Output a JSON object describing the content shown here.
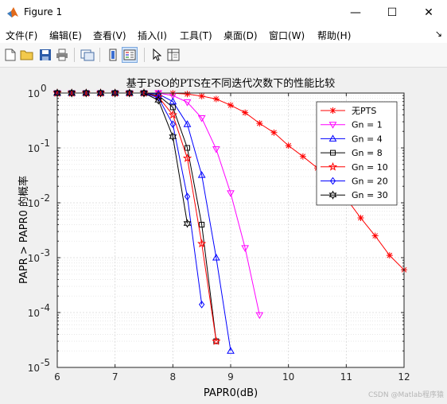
{
  "window": {
    "title": "Figure 1",
    "buttons": {
      "minimize": "—",
      "maximize": "☐",
      "close": "✕"
    }
  },
  "menubar": {
    "items": [
      {
        "name": "menu-file",
        "label": "文件(F)"
      },
      {
        "name": "menu-edit",
        "label": "编辑(E)"
      },
      {
        "name": "menu-view",
        "label": "查看(V)"
      },
      {
        "name": "menu-insert",
        "label": "插入(I)"
      },
      {
        "name": "menu-tools",
        "label": "工具(T)"
      },
      {
        "name": "menu-desktop",
        "label": "桌面(D)"
      },
      {
        "name": "menu-window",
        "label": "窗口(W)"
      },
      {
        "name": "menu-help",
        "label": "帮助(H)"
      }
    ],
    "dock_glyph": "↘"
  },
  "toolbar": {
    "icons": [
      "new-figure-icon",
      "open-file-icon",
      "save-icon",
      "print-icon",
      "link-plot-icon",
      "colorbar-icon",
      "legend-icon",
      "pointer-icon",
      "property-inspector-icon"
    ]
  },
  "watermark": "CSDN @Matlab程序猿",
  "chart_data": {
    "type": "line",
    "title": "基于PSO的PTS在不同迭代次数下的性能比较",
    "xlabel": "PAPR0(dB)",
    "ylabel": "PAPR > PAPR0 的概率",
    "xlim": [
      6,
      12
    ],
    "ylim": [
      1e-05,
      1
    ],
    "yscale": "log",
    "xticks": [
      "6",
      "7",
      "8",
      "9",
      "10",
      "11",
      "12"
    ],
    "yticks": [
      {
        "base": "10",
        "exp": "0"
      },
      {
        "base": "10",
        "exp": "-1"
      },
      {
        "base": "10",
        "exp": "-2"
      },
      {
        "base": "10",
        "exp": "-3"
      },
      {
        "base": "10",
        "exp": "-4"
      },
      {
        "base": "10",
        "exp": "-5"
      }
    ],
    "grid": true,
    "minor_grid": true,
    "legend_position": "top-right",
    "series": [
      {
        "name": "无PTS",
        "color": "#ff0000",
        "marker": "star",
        "x": [
          6,
          6.25,
          6.5,
          6.75,
          7,
          7.25,
          7.5,
          7.75,
          8,
          8.25,
          8.5,
          8.75,
          9,
          9.25,
          9.5,
          9.75,
          10,
          10.25,
          10.5,
          10.75,
          11,
          11.25,
          11.5,
          11.75,
          12
        ],
        "y": [
          1,
          1,
          1,
          1,
          1,
          1,
          1,
          1,
          0.99,
          0.96,
          0.88,
          0.78,
          0.6,
          0.44,
          0.28,
          0.19,
          0.11,
          0.07,
          0.043,
          0.025,
          0.012,
          0.0053,
          0.0025,
          0.0011,
          0.0006
        ]
      },
      {
        "name": "Gn = 1",
        "color": "#ff00ff",
        "marker": "triangle-down",
        "x": [
          6,
          6.25,
          6.5,
          6.75,
          7,
          7.25,
          7.5,
          7.75,
          8,
          8.25,
          8.5,
          8.75,
          9,
          9.25,
          9.5
        ],
        "y": [
          1,
          1,
          1,
          1,
          1,
          1,
          1,
          1,
          0.9,
          0.68,
          0.35,
          0.095,
          0.015,
          0.0015,
          9e-05
        ]
      },
      {
        "name": "Gn = 4",
        "color": "#0000ff",
        "marker": "triangle-up",
        "x": [
          6,
          6.25,
          6.5,
          6.75,
          7,
          7.25,
          7.5,
          7.75,
          8,
          8.25,
          8.5,
          8.75,
          9
        ],
        "y": [
          1,
          1,
          1,
          1,
          1,
          1,
          1,
          0.96,
          0.7,
          0.27,
          0.032,
          0.001,
          2e-05
        ]
      },
      {
        "name": "Gn = 8",
        "color": "#000000",
        "marker": "square",
        "x": [
          6,
          6.25,
          6.5,
          6.75,
          7,
          7.25,
          7.5,
          7.75,
          8,
          8.25,
          8.5,
          8.75
        ],
        "y": [
          1,
          1,
          1,
          1,
          1,
          1,
          1,
          0.9,
          0.55,
          0.1,
          0.004,
          3e-05
        ]
      },
      {
        "name": "Gn = 10",
        "color": "#ff0000",
        "marker": "pentagram",
        "x": [
          6,
          6.25,
          6.5,
          6.75,
          7,
          7.25,
          7.5,
          7.75,
          8,
          8.25,
          8.5,
          8.75
        ],
        "y": [
          1,
          1,
          1,
          1,
          1,
          1,
          1,
          0.85,
          0.4,
          0.065,
          0.0018,
          3e-05
        ]
      },
      {
        "name": "Gn = 20",
        "color": "#0000ff",
        "marker": "diamond",
        "x": [
          6,
          6.25,
          6.5,
          6.75,
          7,
          7.25,
          7.5,
          7.75,
          8,
          8.25,
          8.5
        ],
        "y": [
          1,
          1,
          1,
          1,
          1,
          1,
          1,
          0.82,
          0.27,
          0.013,
          0.00014
        ]
      },
      {
        "name": "Gn = 30",
        "color": "#000000",
        "marker": "hexagram",
        "x": [
          6,
          6.25,
          6.5,
          6.75,
          7,
          7.25,
          7.5,
          7.75,
          8,
          8.25
        ],
        "y": [
          1,
          1,
          1,
          1,
          1,
          1,
          1,
          0.74,
          0.16,
          0.0042
        ]
      }
    ]
  }
}
